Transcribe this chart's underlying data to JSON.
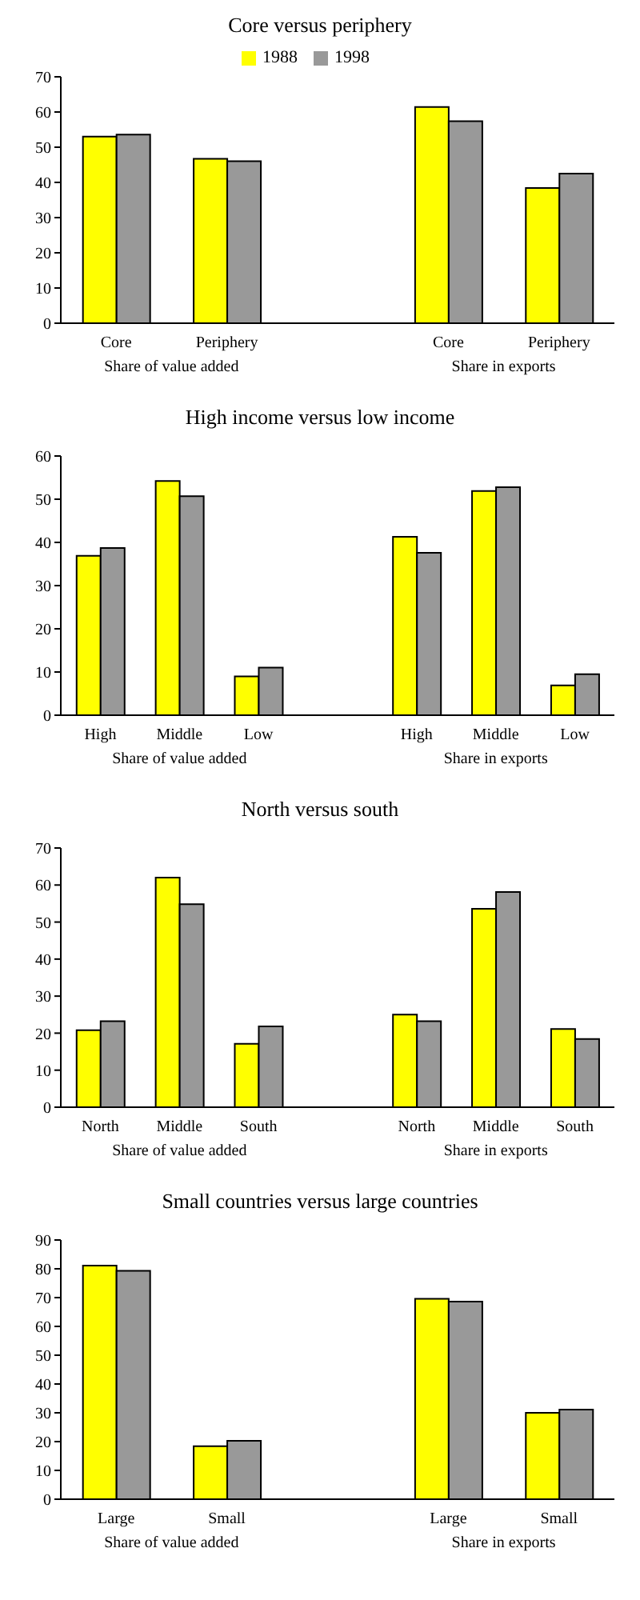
{
  "chart_data": [
    {
      "type": "bar",
      "title": "Core versus periphery",
      "categories": [
        "Core",
        "Periphery",
        null,
        "Core",
        "Periphery"
      ],
      "series": [
        {
          "name": "1988",
          "color": "#ffff00",
          "values": [
            53,
            46.7,
            null,
            61.4,
            38.4
          ]
        },
        {
          "name": "1998",
          "color": "#999999",
          "values": [
            53.6,
            46,
            null,
            57.4,
            42.5
          ]
        }
      ],
      "ylim": [
        0,
        70
      ],
      "yticks": [
        0,
        10,
        20,
        30,
        40,
        50,
        60,
        70
      ],
      "grid": false,
      "legend": "top",
      "annotations": [
        "Share of value added",
        "Share in exports"
      ]
    },
    {
      "type": "bar",
      "title": "High income versus low income",
      "categories": [
        "High",
        "Middle",
        "Low",
        null,
        "High",
        "Middle",
        "Low"
      ],
      "series": [
        {
          "color": "#ffff00",
          "values": [
            36.9,
            54.2,
            9,
            null,
            41.3,
            51.9,
            6.9
          ]
        },
        {
          "color": "#999999",
          "values": [
            38.7,
            50.7,
            11,
            null,
            37.6,
            52.8,
            9.5
          ]
        }
      ],
      "ylim": [
        0,
        60
      ],
      "yticks": [
        0,
        10,
        20,
        30,
        40,
        50,
        60
      ],
      "grid": false,
      "legend": false,
      "annotations": [
        "Share of value added",
        "Share in exports"
      ]
    },
    {
      "type": "bar",
      "title": "North versus south",
      "categories": [
        "North",
        "Middle",
        "South",
        null,
        "North",
        "Middle",
        "South"
      ],
      "series": [
        {
          "color": "#ffff00",
          "values": [
            20.8,
            62,
            17.1,
            null,
            25,
            53.6,
            21.1
          ]
        },
        {
          "color": "#999999",
          "values": [
            23.2,
            54.8,
            21.8,
            null,
            23.2,
            58.1,
            18.4
          ]
        }
      ],
      "ylim": [
        0,
        70
      ],
      "yticks": [
        0,
        10,
        20,
        30,
        40,
        50,
        60,
        70
      ],
      "grid": false,
      "legend": false,
      "annotations": [
        "Share of value added",
        "Share in exports"
      ]
    },
    {
      "type": "bar",
      "title": "Small countries versus large countries",
      "categories": [
        "Large",
        "Small",
        null,
        "Large",
        "Small"
      ],
      "series": [
        {
          "color": "#ffff00",
          "values": [
            81.1,
            18.4,
            null,
            69.6,
            30
          ]
        },
        {
          "color": "#999999",
          "values": [
            79.3,
            20.3,
            null,
            68.6,
            31.1
          ]
        }
      ],
      "ylim": [
        0,
        90
      ],
      "yticks": [
        0,
        10,
        20,
        30,
        40,
        50,
        60,
        70,
        80,
        90
      ],
      "grid": false,
      "legend": false,
      "annotations": [
        "Share of value added",
        "Share in exports"
      ]
    }
  ]
}
